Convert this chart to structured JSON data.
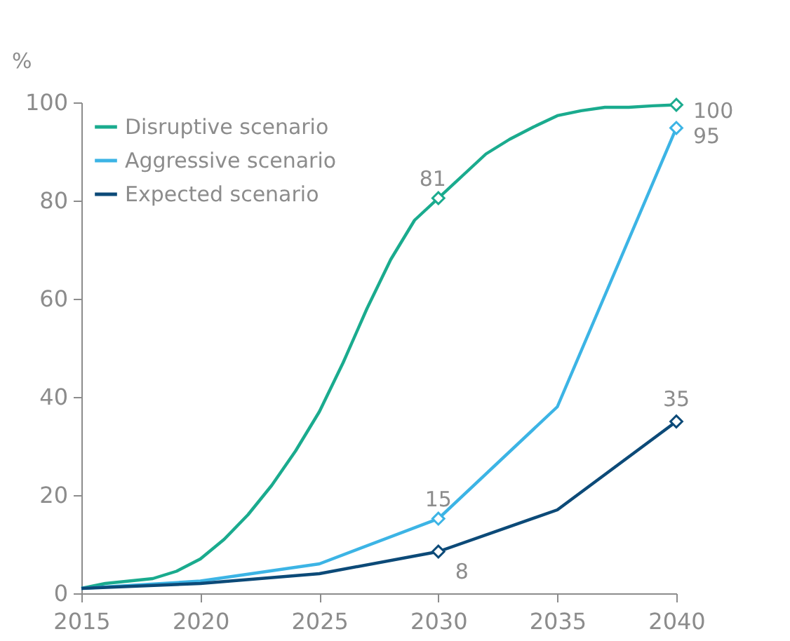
{
  "chart_data": {
    "type": "line",
    "ylabel": "%",
    "xlim": [
      2015,
      2040
    ],
    "xticks": [
      2015,
      2020,
      2025,
      2030,
      2035,
      2040
    ],
    "ylim": [
      0,
      100
    ],
    "yticks": [
      0,
      20,
      40,
      60,
      80,
      100
    ],
    "grid": false,
    "legend": "top left",
    "line_style": "solid",
    "series": [
      {
        "name": "Disruptive scenario",
        "color": "#1aab8e",
        "x": [
          2015,
          2016,
          2017,
          2018,
          2019,
          2020,
          2021,
          2022,
          2023,
          2024,
          2025,
          2026,
          2027,
          2028,
          2029,
          2030,
          2031,
          2032,
          2033,
          2034,
          2035,
          2036,
          2037,
          2038,
          2039,
          2040
        ],
        "values": [
          1,
          2,
          2.5,
          3,
          4.5,
          7,
          11,
          16,
          22,
          29,
          37,
          47,
          58,
          68,
          76,
          80.5,
          85,
          89.5,
          92.5,
          95,
          97.3,
          98.3,
          99,
          99,
          99.3,
          99.5
        ],
        "value_labels": [
          null,
          null,
          null,
          null,
          null,
          null,
          null,
          null,
          null,
          null,
          null,
          null,
          null,
          null,
          null,
          "81",
          null,
          null,
          null,
          null,
          null,
          null,
          null,
          null,
          null,
          "100"
        ]
      },
      {
        "name": "Aggressive scenario",
        "color": "#3cb4e5",
        "x": [
          2015,
          2020,
          2025,
          2030,
          2035,
          2040
        ],
        "values": [
          1,
          2.5,
          6,
          15.2,
          38,
          94.8
        ],
        "value_labels": [
          null,
          null,
          null,
          "15",
          null,
          "95"
        ]
      },
      {
        "name": "Expected scenario",
        "color": "#0c4a78",
        "x": [
          2015,
          2020,
          2025,
          2030,
          2035,
          2040
        ],
        "values": [
          1,
          2,
          4,
          8.5,
          17,
          35
        ],
        "value_labels": [
          null,
          null,
          null,
          "8",
          null,
          "35"
        ]
      }
    ]
  }
}
